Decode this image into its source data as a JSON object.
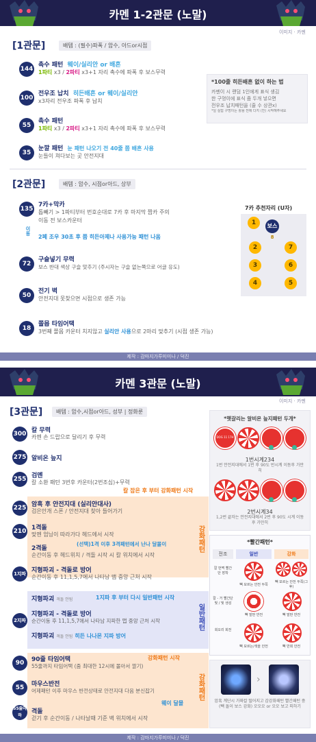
{
  "section1": {
    "header_title": "카멘 1-2관문 (노말)",
    "credit": "이미지 · 카멘",
    "phase1": {
      "title": "[1관문]",
      "role": "배템 : (필수)파폭 / 암수, 아드or시점",
      "patterns": [
        {
          "hp": "144",
          "title": "촉수 패턴",
          "title_hl": "웨이/실리안 or 배흔",
          "desc_a": "1파티",
          "desc_b": " x3 / ",
          "desc_c": "2파티",
          "desc_d": " x3+1 자리 촉수에 파폭 후 보스무력"
        },
        {
          "hp": "100",
          "title": "전우조 납치",
          "title_hl": "히든배흔 or 웨이/실리안",
          "desc": "x3자리 전우조 파폭 후 납치"
        },
        {
          "hp": "55",
          "title": "촉수 패턴",
          "desc_a": "1파티",
          "desc_b": " x3 / ",
          "desc_c": "2파티",
          "desc_d": " x3+1 자리 촉수에 파폭 후 보스무력"
        },
        {
          "hp": "35",
          "title": "눈깔 패턴",
          "title_hl": "눈 패턴 나오기 전 40줄 쯤 배흔 사용",
          "desc": "눈들이 쳐다보는 곳 안전지대"
        }
      ],
      "memo": {
        "title": "*100줄 히든배흔 없이 하는 법",
        "lines": [
          "카멘이 시 랜덤 1인에게 표식 생김",
          "한 구멍이에 표식 줌 두개 넣으면",
          "전우조 납치패턴을 (줄 수 상관x)",
          "*일 실험 구멍이는 활용 전에 다지 (진) 시작해주세요"
        ]
      }
    },
    "phase2": {
      "title": "[2관문]",
      "role": "배템 : 암수, 시점or아드, 상부",
      "patterns": [
        {
          "hp": "135",
          "title": "7카+막카",
          "desc": "톱빼기 > 1파티부터 번호순대로 7카 후 마지막 짭카 주의",
          "desc2": "이동 전 보스카운터",
          "extra": "2페 조우 30초 후 쯤 히든아제나 사용가능 패턴 나옴"
        },
        {
          "hp": "72",
          "title": "구슬넣기 무력",
          "desc": "보스 반대 색상 구슬 맞추기 (주시자는 구슬 없는쪽으로 어글 유도)"
        },
        {
          "hp": "50",
          "title": "전기 벽",
          "desc": "안전지대 못찾으면 시점으로 생존 가능"
        },
        {
          "hp": "18",
          "title": "쫄몹 타임어택",
          "desc_a": "3번째 쫄몹 카운터 치지않고 ",
          "desc_hl": "실리안 사용",
          "desc_b": "으로 2마리 맞추기 (시점 생존 가능)"
        }
      ],
      "vertical_label": "이동",
      "position_title": "7카 추천자리 (U자)",
      "positions": [
        "1",
        "2",
        "3",
        "4",
        "5",
        "6",
        "7",
        "8"
      ],
      "boss_label": "보스"
    },
    "footer": "제작 : 감마지가루미미나 / 덕진"
  },
  "section2": {
    "header_title": "카멘 3관문 (노말)",
    "credit": "이미지 · 카멘",
    "phase3": {
      "title": "[3관문]",
      "role": "배템 : 암수,시점or아드, 성부 | 정화룬",
      "patterns": [
        {
          "hp": "300",
          "title": "칼 무력",
          "desc": "카멘 손 드랍으로 달리기 후 무력"
        },
        {
          "hp": "275",
          "title": "알비온 늪지"
        },
        {
          "hp": "255",
          "title": "검멘",
          "desc": "칼 소환 패턴 3번후 카운터(2번조심)+무력",
          "note": "칼 잡은 후 부터 강화패턴 시작"
        },
        {
          "hp": "225",
          "title": "암흑 후 안전지대 (실리안대사)",
          "desc": "검은안개 스폰 / 안전지대 찾아 들어가기"
        },
        {
          "hp": "210",
          "title": "1격돌",
          "desc": "맞멘 엄닝이 따라가다 헤드에서 시작",
          "title2": "2격돌",
          "hl2": "(선택)1격 이후 3격패턴에서 난나 달몰이",
          "desc2": "순간이동 후 헤드위치 / 격돌 시작 시 칼 위치에서 시작"
        },
        {
          "hp": "1지파",
          "title": "지형파괴 - 격돌로 방어",
          "desc": "순간이동 후 11,1,5,7에서 나타남 맵 중앙 근처 시작"
        },
        {
          "hp": "2지파",
          "title": "지형파괴",
          "small": "격돌 안됨",
          "note": "1지파 후 부터 다시 일반패턴 시작",
          "title2": "지형파괴 - 격돌로 방어",
          "desc2": "순간이동 후 11,1,5,7에서 나타남 지파한 맵 중앙 근처 시작",
          "title3": "지형파괴",
          "small3": "격돌 안됨",
          "hl3": "히든 나나몬 지파 방어"
        },
        {
          "hp": "90",
          "title": "90줄 타임어택",
          "desc": "55줄까지 타임어택 (줌 최대한 12시에 몰아서 깔기)",
          "note": "강화패턴 시작"
        },
        {
          "hp": "55",
          "title": "마우스반전",
          "desc": "어제패턴 이후 마우스 반전상태로 안전지대 다음 분신잡기"
        },
        {
          "hp": "55줄이하",
          "title": "격돌",
          "desc": "걷기 후 순간이동 / 나타날때 기준 벽 위치에서 시작",
          "note": "웨이 달몰"
        }
      ],
      "side_labels": {
        "strong1": "강화패턴",
        "normal": "일반패턴",
        "strong2": "강화패턴"
      },
      "albion": {
        "title": "*헷갈리는 알비온 늪지패턴 두개*",
        "badge": "DOG 11 17H",
        "cap1": "1번시계234",
        "cap1_sub": "1번 안전지대에서 1번 후 90도 반시계 이동후 가만히",
        "cap2": "2번시계34",
        "cap2_sub": "1,2번 끝자는 안전지대에서 2번 후 90도 시계 이동후 가만히"
      },
      "red_pattern": {
        "title": "*빨간패턴*",
        "headers": [
          "전조",
          "일반",
          "강화"
        ],
        "rows": [
          {
            "label": "칼 번쩍 빨간단 장착",
            "normal": "빽 모르는 안전 두쪽",
            "strong": "빽 모르는 안전 두쪽(그 후)"
          },
          {
            "label": "칼 - 거 빨간단 빛 / 빛 생성",
            "normal": "빽 발판 반전",
            "strong": "빽 발판 반전"
          },
          {
            "label": "회오리 회전",
            "normal": "빽 모르는/색을 안전",
            "strong": "빽 반회 안전"
          }
        ]
      },
      "mouse_caption": "암흑 계단시 가짜칼 떨어지고 감강화패턴 빨간패턴 중 (빽 돌이 보스 강화) 오오오 or 오오 보고 피하기"
    },
    "footer": "제작 : 감마지가루미미나 / 덕진"
  }
}
